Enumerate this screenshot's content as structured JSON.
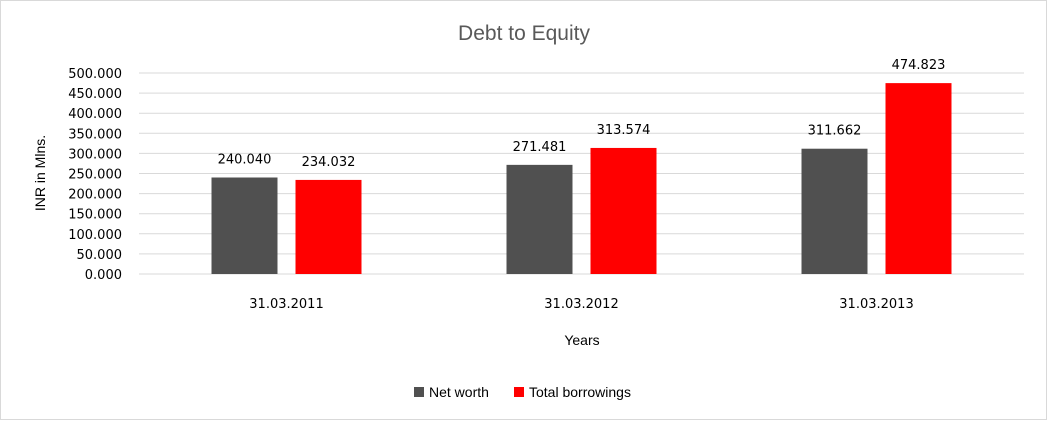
{
  "chart_data": {
    "type": "bar",
    "title": "Debt to Equity",
    "xlabel": "Years",
    "ylabel": "INR in Mlns.",
    "categories": [
      "31.03.2011",
      "31.03.2012",
      "31.03.2013"
    ],
    "series": [
      {
        "name": "Net worth",
        "values": [
          240.04,
          271.481,
          311.662
        ],
        "labels": [
          "240.040",
          "271.481",
          "311.662"
        ],
        "color": "#505050"
      },
      {
        "name": "Total borrowings",
        "values": [
          234.032,
          313.574,
          474.823
        ],
        "labels": [
          "234.032",
          "313.574",
          "474.823"
        ],
        "color": "#ff0000"
      }
    ],
    "ylim": [
      0,
      500
    ],
    "yticks": [
      0,
      50,
      100,
      150,
      200,
      250,
      300,
      350,
      400,
      450,
      500
    ],
    "ytick_labels": [
      "0.000",
      "50.000",
      "100.000",
      "150.000",
      "200.000",
      "250.000",
      "300.000",
      "350.000",
      "400.000",
      "450.000",
      "500.000"
    ],
    "grid": true,
    "legend_position": "bottom"
  }
}
